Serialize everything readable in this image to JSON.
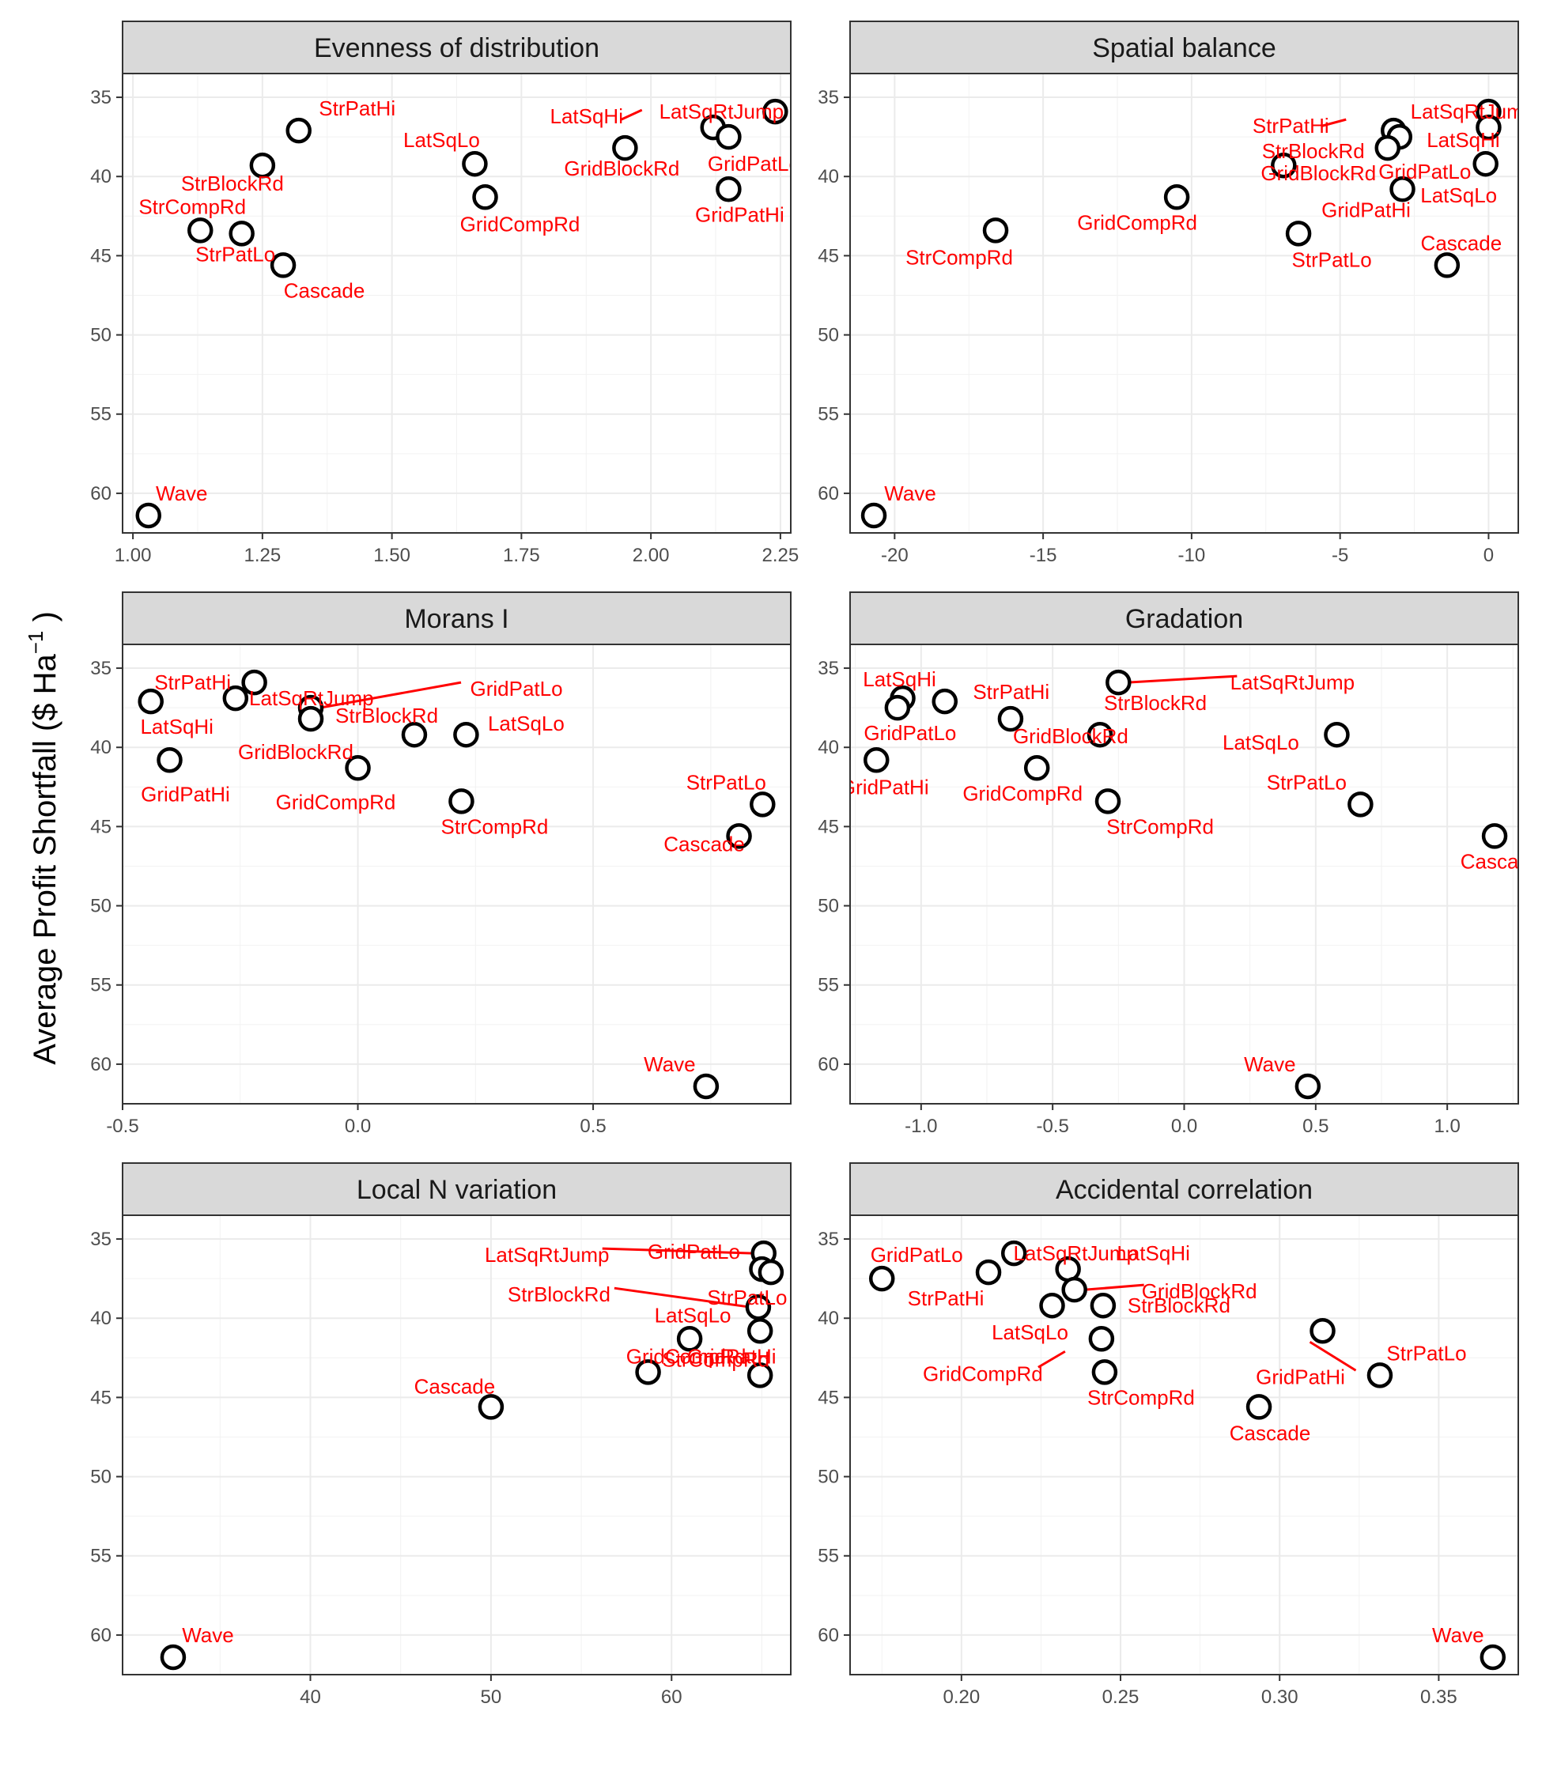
{
  "figure": {
    "y_title_main": "Average Profit Shortfall ($  Ha",
    "y_title_sup": "−1",
    "y_title_end": " )"
  },
  "chart_data": [
    {
      "type": "scatter",
      "title": "Evenness of distribution",
      "xlim": [
        0.98,
        2.27
      ],
      "ylim": [
        62.5,
        33.5
      ],
      "y_reversed": true,
      "xticks": [
        1.0,
        1.25,
        1.5,
        1.75,
        2.0,
        2.25
      ],
      "xtick_labels": [
        "1.00",
        "1.25",
        "1.50",
        "1.75",
        "2.00",
        "2.25"
      ],
      "yticks": [
        35,
        40,
        45,
        50,
        55,
        60
      ],
      "ytick_labels": [
        "35",
        "40",
        "45",
        "50",
        "55",
        "60"
      ],
      "points": [
        {
          "label": "StrPatHi",
          "x": 1.32,
          "y": 37.1
        },
        {
          "label": "StrBlockRd",
          "x": 1.25,
          "y": 39.3
        },
        {
          "label": "StrCompRd",
          "x": 1.13,
          "y": 43.4
        },
        {
          "label": "StrPatLo",
          "x": 1.21,
          "y": 43.6
        },
        {
          "label": "Cascade",
          "x": 1.29,
          "y": 45.6
        },
        {
          "label": "LatSqLo",
          "x": 1.66,
          "y": 39.2
        },
        {
          "label": "GridCompRd",
          "x": 1.68,
          "y": 41.3
        },
        {
          "label": "GridBlockRd",
          "x": 1.95,
          "y": 38.2
        },
        {
          "label": "LatSqHi",
          "x": 2.12,
          "y": 36.9
        },
        {
          "label": "GridPatLo",
          "x": 2.15,
          "y": 37.5
        },
        {
          "label": "LatSqRtJump",
          "x": 2.24,
          "y": 35.9
        },
        {
          "label": "GridPatHi",
          "x": 2.15,
          "y": 40.8
        },
        {
          "label": "Wave",
          "x": 1.03,
          "y": 61.4
        }
      ]
    },
    {
      "type": "scatter",
      "title": "Spatial balance",
      "xlim": [
        -21.5,
        1.0
      ],
      "ylim": [
        62.5,
        33.5
      ],
      "y_reversed": true,
      "xticks": [
        -20,
        -15,
        -10,
        -5,
        0
      ],
      "xtick_labels": [
        "-20",
        "-15",
        "-10",
        "-5",
        "0"
      ],
      "yticks": [
        35,
        40,
        45,
        50,
        55,
        60
      ],
      "ytick_labels": [
        "35",
        "40",
        "45",
        "50",
        "55",
        "60"
      ],
      "points": [
        {
          "label": "LatSqRtJump",
          "x": 0.0,
          "y": 35.9
        },
        {
          "label": "LatSqHi",
          "x": 0.0,
          "y": 36.9
        },
        {
          "label": "StrPatHi",
          "x": -3.2,
          "y": 37.1
        },
        {
          "label": "GridPatLo",
          "x": -3.0,
          "y": 37.5
        },
        {
          "label": "GridBlockRd",
          "x": -6.9,
          "y": 39.3
        },
        {
          "label": "StrBlockRd",
          "x": -3.4,
          "y": 38.2
        },
        {
          "label": "LatSqLo",
          "x": -0.1,
          "y": 39.2
        },
        {
          "label": "GridCompRd",
          "x": -10.5,
          "y": 41.3
        },
        {
          "label": "GridPatHi",
          "x": -2.9,
          "y": 40.8
        },
        {
          "label": "StrCompRd",
          "x": -16.6,
          "y": 43.4
        },
        {
          "label": "StrPatLo",
          "x": -6.4,
          "y": 43.6
        },
        {
          "label": "Cascade",
          "x": -1.4,
          "y": 45.6
        },
        {
          "label": "Wave",
          "x": -20.7,
          "y": 61.4
        }
      ]
    },
    {
      "type": "scatter",
      "title": "Morans I",
      "xlim": [
        -0.5,
        0.92
      ],
      "ylim": [
        62.5,
        33.5
      ],
      "y_reversed": true,
      "xticks": [
        -0.5,
        0.0,
        0.5
      ],
      "xtick_labels": [
        "-0.5",
        "0.0",
        "0.5"
      ],
      "yticks": [
        35,
        40,
        45,
        50,
        55,
        60
      ],
      "ytick_labels": [
        "35",
        "40",
        "45",
        "50",
        "55",
        "60"
      ],
      "points": [
        {
          "label": "StrPatHi",
          "x": -0.22,
          "y": 35.9
        },
        {
          "label": "LatSqRtJump",
          "x": -0.26,
          "y": 36.9
        },
        {
          "label": "LatSqHi",
          "x": -0.44,
          "y": 37.1
        },
        {
          "label": "GridPatLo",
          "x": -0.1,
          "y": 37.5
        },
        {
          "label": "StrBlockRd",
          "x": -0.1,
          "y": 38.2
        },
        {
          "label": "GridBlockRd",
          "x": 0.12,
          "y": 39.2
        },
        {
          "label": "LatSqLo",
          "x": 0.23,
          "y": 39.2
        },
        {
          "label": "GridPatHi",
          "x": -0.4,
          "y": 40.8
        },
        {
          "label": "GridCompRd",
          "x": 0.0,
          "y": 41.3
        },
        {
          "label": "StrCompRd",
          "x": 0.22,
          "y": 43.4
        },
        {
          "label": "StrPatLo",
          "x": 0.86,
          "y": 43.6
        },
        {
          "label": "Cascade",
          "x": 0.81,
          "y": 45.6
        },
        {
          "label": "Wave",
          "x": 0.74,
          "y": 61.4
        }
      ]
    },
    {
      "type": "scatter",
      "title": "Gradation",
      "xlim": [
        -1.27,
        1.27
      ],
      "ylim": [
        62.5,
        33.5
      ],
      "y_reversed": true,
      "xticks": [
        -1.0,
        -0.5,
        0.0,
        0.5,
        1.0
      ],
      "xtick_labels": [
        "-1.0",
        "-0.5",
        "0.0",
        "0.5",
        "1.0"
      ],
      "yticks": [
        35,
        40,
        45,
        50,
        55,
        60
      ],
      "ytick_labels": [
        "35",
        "40",
        "45",
        "50",
        "55",
        "60"
      ],
      "points": [
        {
          "label": "LatSqRtJump",
          "x": -0.25,
          "y": 35.9
        },
        {
          "label": "LatSqHi",
          "x": -1.07,
          "y": 36.9
        },
        {
          "label": "GridPatLo",
          "x": -1.09,
          "y": 37.5
        },
        {
          "label": "StrPatHi",
          "x": -0.91,
          "y": 37.1
        },
        {
          "label": "GridBlockRd",
          "x": -0.66,
          "y": 38.2
        },
        {
          "label": "StrBlockRd",
          "x": -0.32,
          "y": 39.2
        },
        {
          "label": "LatSqLo",
          "x": 0.58,
          "y": 39.2
        },
        {
          "label": "GridPatHi",
          "x": -1.17,
          "y": 40.8
        },
        {
          "label": "GridCompRd",
          "x": -0.56,
          "y": 41.3
        },
        {
          "label": "StrCompRd",
          "x": -0.29,
          "y": 43.4
        },
        {
          "label": "StrPatLo",
          "x": 0.67,
          "y": 43.6
        },
        {
          "label": "Cascade",
          "x": 1.18,
          "y": 45.6
        },
        {
          "label": "Wave",
          "x": 0.47,
          "y": 61.4
        }
      ]
    },
    {
      "type": "scatter",
      "title": "Local N variation",
      "xlim": [
        29.6,
        66.6
      ],
      "ylim": [
        62.5,
        33.5
      ],
      "y_reversed": true,
      "xticks": [
        40,
        50,
        60
      ],
      "xtick_labels": [
        "40",
        "50",
        "60"
      ],
      "yticks": [
        35,
        40,
        45,
        50,
        55,
        60
      ],
      "ytick_labels": [
        "35",
        "40",
        "45",
        "50",
        "55",
        "60"
      ],
      "points": [
        {
          "label": "LatSqRtJump",
          "x": 65.1,
          "y": 35.9
        },
        {
          "label": "GridPatLo",
          "x": 65.0,
          "y": 36.9
        },
        {
          "label": "StrBlockRd",
          "x": 64.8,
          "y": 39.3
        },
        {
          "label": "LatSqLo",
          "x": 61.0,
          "y": 41.3
        },
        {
          "label": "GridCompRd",
          "x": 58.7,
          "y": 43.4
        },
        {
          "label": "GridPatHi",
          "x": 64.9,
          "y": 40.8
        },
        {
          "label": "StrCompRd",
          "x": 64.9,
          "y": 43.6
        },
        {
          "label": "StrPatLo",
          "x": 65.5,
          "y": 37.1
        },
        {
          "label": "Cascade",
          "x": 50.0,
          "y": 45.6
        },
        {
          "label": "Wave",
          "x": 32.4,
          "y": 61.4
        }
      ]
    },
    {
      "type": "scatter",
      "title": "Accidental correlation",
      "xlim": [
        0.165,
        0.375
      ],
      "ylim": [
        62.5,
        33.5
      ],
      "y_reversed": true,
      "xticks": [
        0.2,
        0.25,
        0.3,
        0.35
      ],
      "xtick_labels": [
        "0.20",
        "0.25",
        "0.30",
        "0.35"
      ],
      "yticks": [
        35,
        40,
        45,
        50,
        55,
        60
      ],
      "ytick_labels": [
        "35",
        "40",
        "45",
        "50",
        "55",
        "60"
      ],
      "points": [
        {
          "label": "GridPatLo",
          "x": 0.175,
          "y": 37.5
        },
        {
          "label": "StrPatHi",
          "x": 0.2085,
          "y": 37.1
        },
        {
          "label": "LatSqRtJump",
          "x": 0.2165,
          "y": 35.9
        },
        {
          "label": "LatSqHi",
          "x": 0.2335,
          "y": 36.9
        },
        {
          "label": "GridBlockRd",
          "x": 0.2355,
          "y": 38.2
        },
        {
          "label": "LatSqLo",
          "x": 0.2285,
          "y": 39.2
        },
        {
          "label": "StrBlockRd",
          "x": 0.2445,
          "y": 39.2
        },
        {
          "label": "GridCompRd",
          "x": 0.244,
          "y": 41.3
        },
        {
          "label": "StrCompRd",
          "x": 0.245,
          "y": 43.4
        },
        {
          "label": "GridPatHi",
          "x": 0.3135,
          "y": 40.8
        },
        {
          "label": "StrPatLo",
          "x": 0.3315,
          "y": 43.6
        },
        {
          "label": "Cascade",
          "x": 0.2935,
          "y": 45.6
        },
        {
          "label": "Wave",
          "x": 0.367,
          "y": 61.4
        }
      ]
    }
  ]
}
